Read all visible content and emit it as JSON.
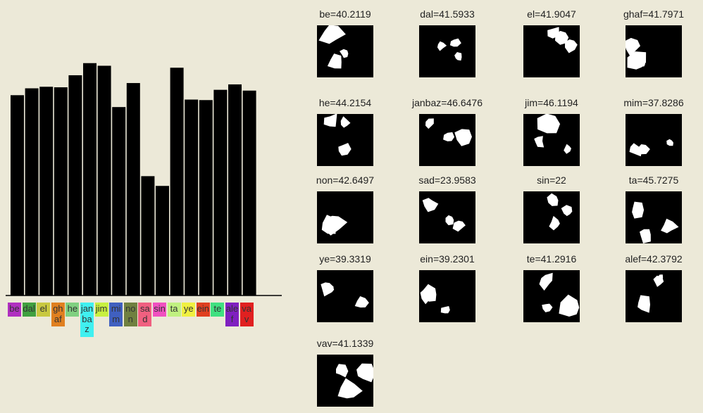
{
  "chart_data": {
    "type": "bar",
    "categories": [
      "be",
      "dal",
      "el",
      "ghaf",
      "he",
      "janbaz",
      "jim",
      "mim",
      "non",
      "sad",
      "sin",
      "ta",
      "ye",
      "ein",
      "te",
      "alef",
      "vav"
    ],
    "values": [
      40.2119,
      41.5933,
      41.9047,
      41.7971,
      44.2154,
      46.6476,
      46.1194,
      37.8286,
      42.6497,
      23.9583,
      22,
      45.7275,
      39.3319,
      39.2301,
      41.2916,
      42.3792,
      41.1339
    ],
    "value_labels": [
      "be=40.2119",
      "dal=41.5933",
      "el=41.9047",
      "ghaf=41.7971",
      "he=44.2154",
      "janbaz=46.6476",
      "jim=46.1194",
      "mim=37.8286",
      "non=42.6497",
      "sad=23.9583",
      "sin=22",
      "ta=45.7275",
      "ye=39.3319",
      "ein=39.2301",
      "te=41.2916",
      "alef=42.3792",
      "vav=41.1339"
    ],
    "color": "#000000",
    "category_colors": [
      "#b030c0",
      "#40a040",
      "#c8c840",
      "#e08020",
      "#80d080",
      "#40f0f0",
      "#c8f040",
      "#4060c0",
      "#708040",
      "#f06080",
      "#f050c0",
      "#c0f080",
      "#f0f040",
      "#e04020",
      "#40e080",
      "#8020c0",
      "#e02020"
    ]
  }
}
